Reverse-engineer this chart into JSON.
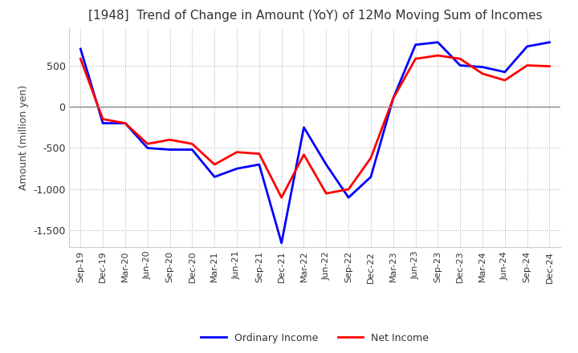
{
  "title": "[1948]  Trend of Change in Amount (YoY) of 12Mo Moving Sum of Incomes",
  "ylabel": "Amount (million yen)",
  "x_labels": [
    "Sep-19",
    "Dec-19",
    "Mar-20",
    "Jun-20",
    "Sep-20",
    "Dec-20",
    "Mar-21",
    "Jun-21",
    "Sep-21",
    "Dec-21",
    "Mar-22",
    "Jun-22",
    "Sep-22",
    "Dec-22",
    "Mar-23",
    "Jun-23",
    "Sep-23",
    "Dec-23",
    "Mar-24",
    "Jun-24",
    "Sep-24",
    "Dec-24"
  ],
  "ordinary_income": [
    700,
    -200,
    -200,
    -500,
    -520,
    -520,
    -850,
    -750,
    -700,
    -1650,
    -250,
    -700,
    -1100,
    -850,
    100,
    750,
    780,
    500,
    480,
    420,
    730,
    780
  ],
  "net_income": [
    580,
    -150,
    -200,
    -450,
    -400,
    -450,
    -700,
    -550,
    -570,
    -1100,
    -580,
    -1050,
    -1000,
    -620,
    100,
    580,
    620,
    580,
    400,
    320,
    500,
    490
  ],
  "ordinary_color": "#0000ff",
  "net_color": "#ff0000",
  "ylim": [
    -1700,
    950
  ],
  "yticks": [
    -1500,
    -1000,
    -500,
    0,
    500
  ],
  "background_color": "#ffffff",
  "grid_color": "#aaaaaa",
  "legend_labels": [
    "Ordinary Income",
    "Net Income"
  ]
}
